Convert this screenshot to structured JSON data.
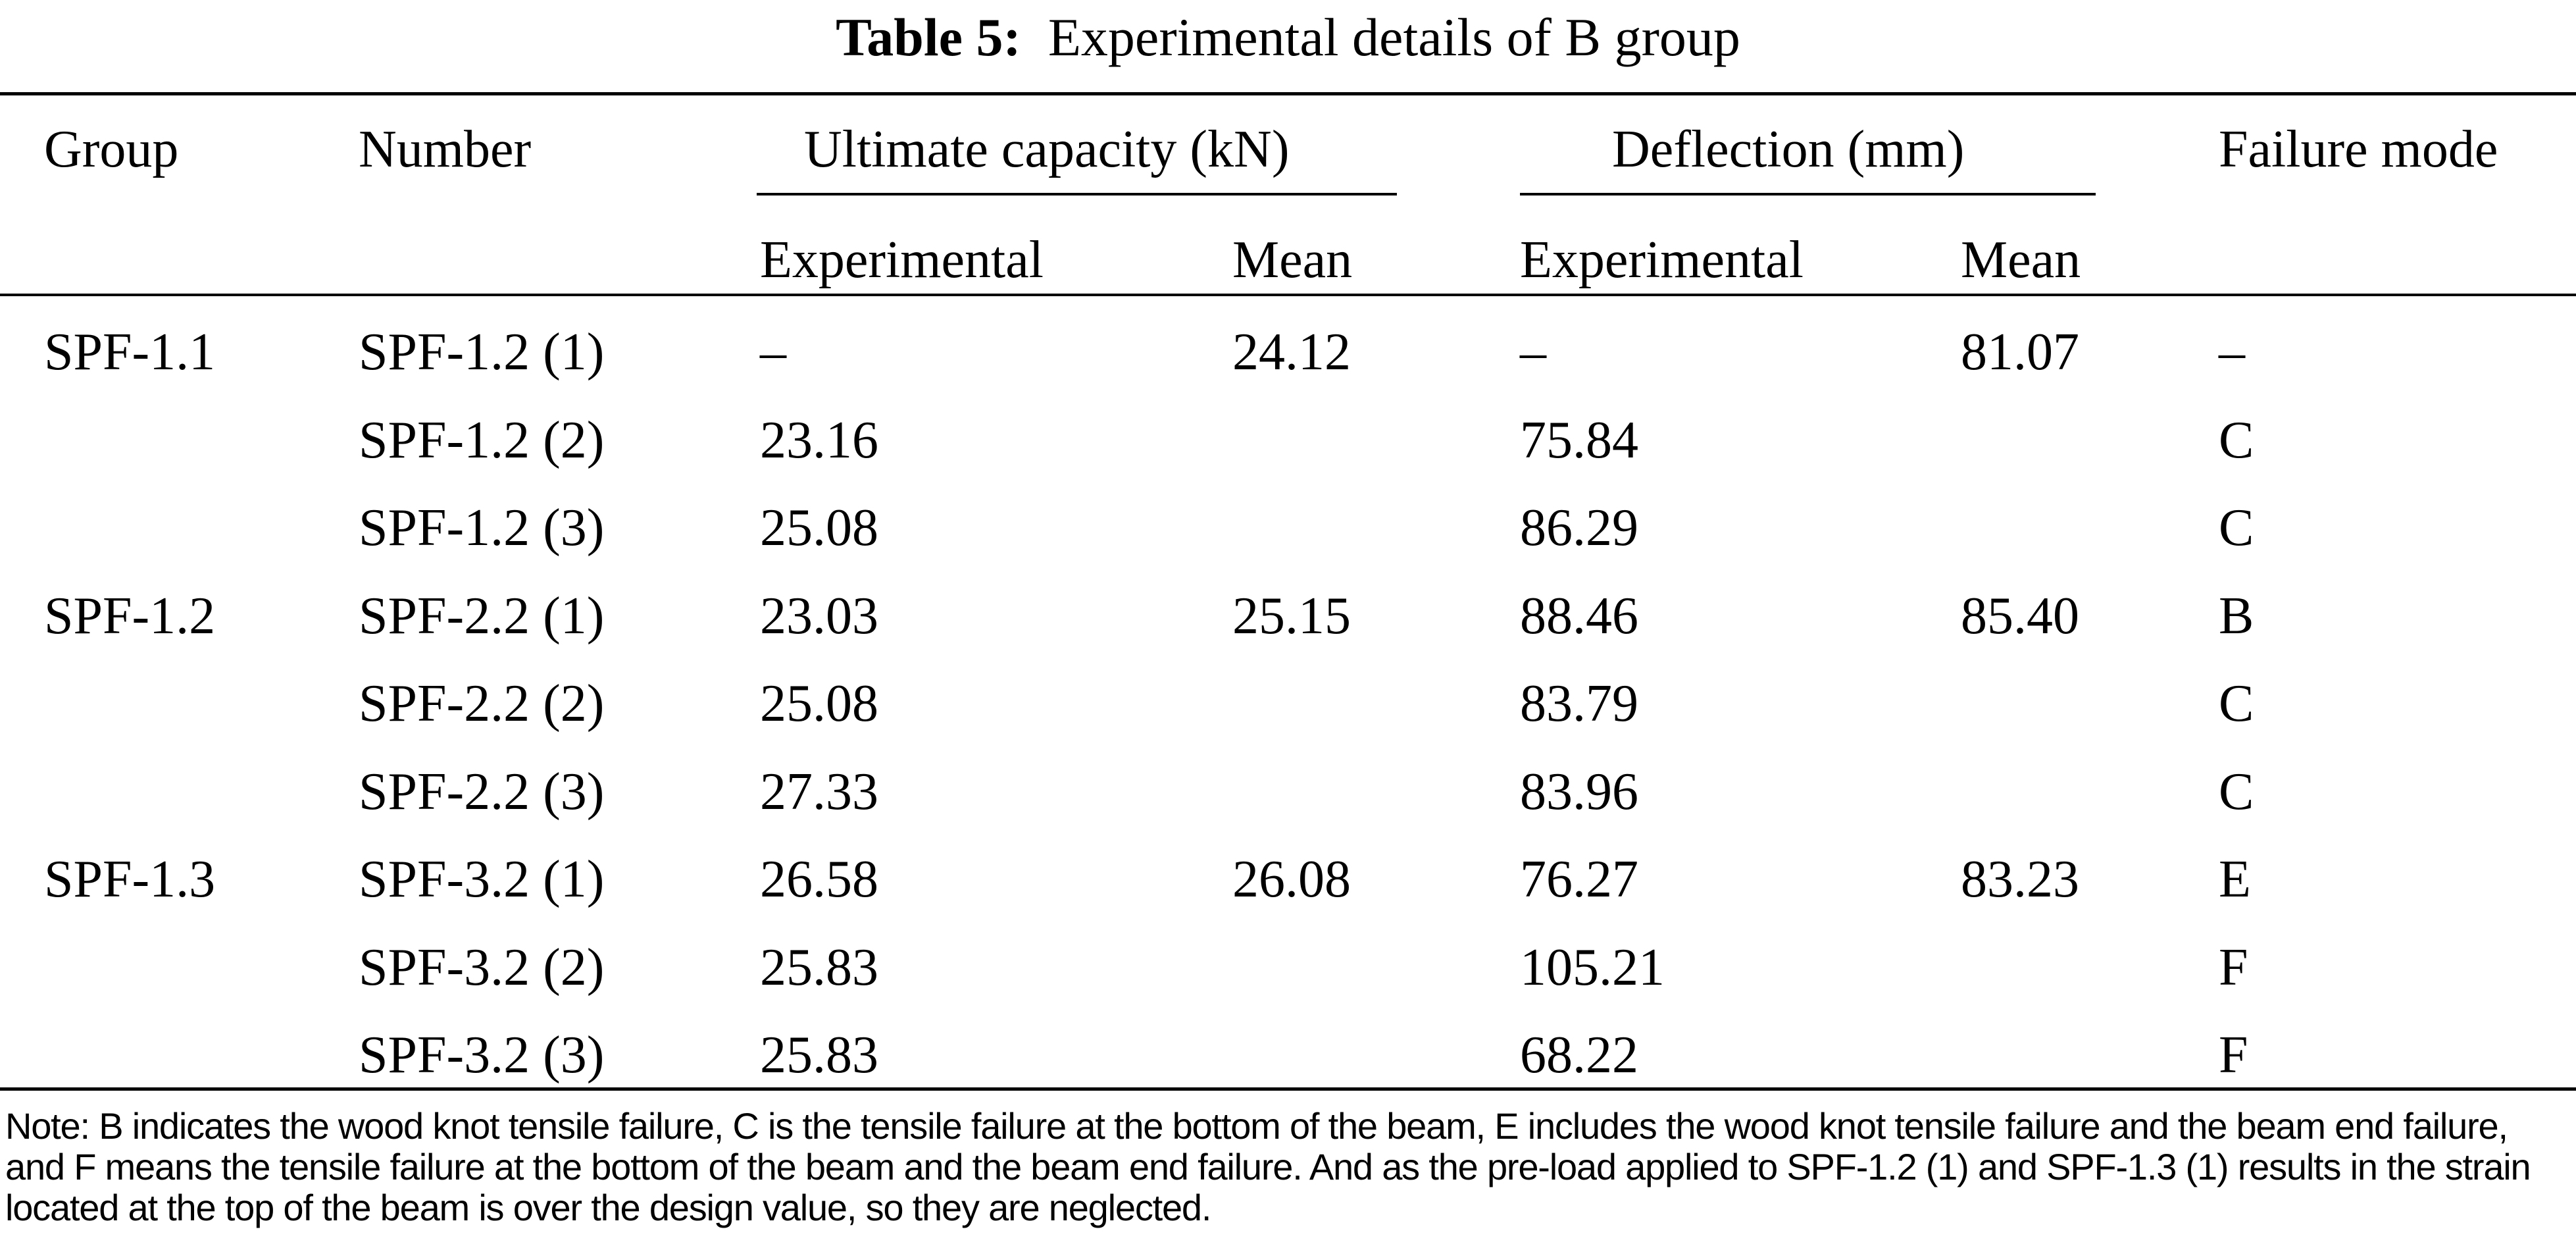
{
  "title": {
    "label": "Table 5:",
    "text": "Experimental details of B group"
  },
  "headers": {
    "group": "Group",
    "number": "Number",
    "ultimate": "Ultimate capacity (kN)",
    "deflection": "Deflection (mm)",
    "failure": "Failure mode",
    "ult_experimental": "Experimental",
    "ult_mean": "Mean",
    "def_experimental": "Experimental",
    "def_mean": "Mean"
  },
  "rows": [
    [
      "SPF-1.1",
      "SPF-1.2 (1)",
      "–",
      "24.12",
      "–",
      "81.07",
      "–"
    ],
    [
      "",
      "SPF-1.2 (2)",
      "23.16",
      "",
      "75.84",
      "",
      "C"
    ],
    [
      "",
      "SPF-1.2 (3)",
      "25.08",
      "",
      "86.29",
      "",
      "C"
    ],
    [
      "SPF-1.2",
      "SPF-2.2 (1)",
      "23.03",
      "25.15",
      "88.46",
      "85.40",
      "B"
    ],
    [
      "",
      "SPF-2.2 (2)",
      "25.08",
      "",
      "83.79",
      "",
      "C"
    ],
    [
      "",
      "SPF-2.2 (3)",
      "27.33",
      "",
      "83.96",
      "",
      "C"
    ],
    [
      "SPF-1.3",
      "SPF-3.2 (1)",
      "26.58",
      "26.08",
      "76.27",
      "83.23",
      "E"
    ],
    [
      "",
      "SPF-3.2 (2)",
      "25.83",
      "",
      "105.21",
      "",
      "F"
    ],
    [
      "",
      "SPF-3.2 (3)",
      "25.83",
      "",
      "68.22",
      "",
      "F"
    ]
  ],
  "note": "Note: B indicates the wood knot tensile failure, C is the tensile failure at the bottom of the beam, E includes the wood knot tensile failure and the beam end failure, and F means the tensile failure at the bottom of the beam and the beam end failure. And as the pre-load applied to SPF-1.2 (1) and SPF-1.3 (1) results in the strain located at the top of the beam is over the design value, so they are neglected."
}
